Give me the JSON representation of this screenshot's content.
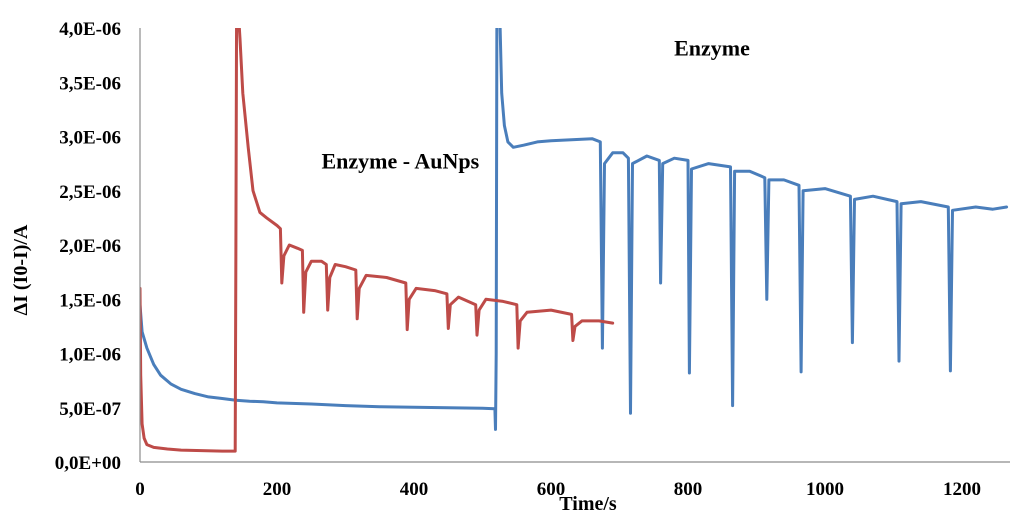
{
  "chart_data": {
    "type": "line",
    "xlabel": "Time/s",
    "ylabel": "ΔI (I0-I)/A",
    "xlim": [
      0,
      1270
    ],
    "ylim": [
      0,
      4e-06
    ],
    "x_ticks": [
      0,
      200,
      400,
      600,
      800,
      1000,
      1200
    ],
    "x_tick_labels": [
      "0",
      "200",
      "400",
      "600",
      "800",
      "1000",
      "1200"
    ],
    "y_ticks": [
      0,
      5e-07,
      1e-06,
      1.5e-06,
      2e-06,
      2.5e-06,
      3e-06,
      3.5e-06,
      4e-06
    ],
    "y_tick_labels": [
      "0,0E+00",
      "5,0E-07",
      "1,0E-06",
      "1,5E-06",
      "2,0E-06",
      "2,5E-06",
      "3,0E-06",
      "3,5E-06",
      "4,0E-06"
    ],
    "grid": false,
    "legend": "none",
    "annotations": [
      {
        "text": "Enzyme",
        "x": 835,
        "y": 3.82e-06
      },
      {
        "text": "Enzyme - AuNps",
        "x": 380,
        "y": 2.78e-06
      }
    ],
    "series": [
      {
        "color": "#4a7ebb",
        "points": [
          [
            0,
            1.45e-06
          ],
          [
            3,
            1.2e-06
          ],
          [
            10,
            1.05e-06
          ],
          [
            20,
            9e-07
          ],
          [
            30,
            8e-07
          ],
          [
            45,
            7.2e-07
          ],
          [
            60,
            6.7e-07
          ],
          [
            80,
            6.3e-07
          ],
          [
            100,
            6e-07
          ],
          [
            120,
            5.85e-07
          ],
          [
            140,
            5.7e-07
          ],
          [
            160,
            5.6e-07
          ],
          [
            180,
            5.55e-07
          ],
          [
            200,
            5.45e-07
          ],
          [
            250,
            5.35e-07
          ],
          [
            300,
            5.2e-07
          ],
          [
            350,
            5.1e-07
          ],
          [
            400,
            5.05e-07
          ],
          [
            450,
            5e-07
          ],
          [
            500,
            4.95e-07
          ],
          [
            518,
            4.9e-07
          ],
          [
            519,
            3e-07
          ],
          [
            520,
            1e-06
          ],
          [
            521,
            4.2e-06
          ],
          [
            525,
            4.2e-06
          ],
          [
            528,
            3.4e-06
          ],
          [
            532,
            3.1e-06
          ],
          [
            537,
            2.95e-06
          ],
          [
            545,
            2.9e-06
          ],
          [
            560,
            2.92e-06
          ],
          [
            580,
            2.95e-06
          ],
          [
            600,
            2.96e-06
          ],
          [
            630,
            2.97e-06
          ],
          [
            660,
            2.98e-06
          ],
          [
            672,
            2.95e-06
          ],
          [
            675,
            1.05e-06
          ],
          [
            678,
            2.75e-06
          ],
          [
            690,
            2.85e-06
          ],
          [
            705,
            2.85e-06
          ],
          [
            713,
            2.8e-06
          ],
          [
            716,
            4.5e-07
          ],
          [
            719,
            2.75e-06
          ],
          [
            740,
            2.82e-06
          ],
          [
            758,
            2.78e-06
          ],
          [
            760,
            1.65e-06
          ],
          [
            763,
            2.75e-06
          ],
          [
            780,
            2.8e-06
          ],
          [
            800,
            2.78e-06
          ],
          [
            802,
            8.2e-07
          ],
          [
            805,
            2.7e-06
          ],
          [
            830,
            2.75e-06
          ],
          [
            862,
            2.72e-06
          ],
          [
            865,
            5.2e-07
          ],
          [
            868,
            2.68e-06
          ],
          [
            890,
            2.68e-06
          ],
          [
            912,
            2.62e-06
          ],
          [
            915,
            1.5e-06
          ],
          [
            918,
            2.6e-06
          ],
          [
            940,
            2.6e-06
          ],
          [
            962,
            2.55e-06
          ],
          [
            965,
            8.3e-07
          ],
          [
            968,
            2.5e-06
          ],
          [
            1000,
            2.52e-06
          ],
          [
            1037,
            2.45e-06
          ],
          [
            1040,
            1.1e-06
          ],
          [
            1043,
            2.42e-06
          ],
          [
            1070,
            2.45e-06
          ],
          [
            1105,
            2.4e-06
          ],
          [
            1108,
            9.3e-07
          ],
          [
            1111,
            2.38e-06
          ],
          [
            1140,
            2.4e-06
          ],
          [
            1180,
            2.35e-06
          ],
          [
            1183,
            8.4e-07
          ],
          [
            1186,
            2.32e-06
          ],
          [
            1220,
            2.35e-06
          ],
          [
            1245,
            2.33e-06
          ],
          [
            1265,
            2.35e-06
          ]
        ]
      },
      {
        "color": "#be4b48",
        "points": [
          [
            0,
            1.6e-06
          ],
          [
            1,
            8e-07
          ],
          [
            3,
            3.5e-07
          ],
          [
            6,
            2.2e-07
          ],
          [
            10,
            1.6e-07
          ],
          [
            20,
            1.35e-07
          ],
          [
            40,
            1.2e-07
          ],
          [
            60,
            1.1e-07
          ],
          [
            90,
            1.05e-07
          ],
          [
            120,
            1e-07
          ],
          [
            139,
            1e-07
          ],
          [
            140,
            2e-06
          ],
          [
            141,
            4.2e-06
          ],
          [
            143,
            4.2e-06
          ],
          [
            146,
            3.9e-06
          ],
          [
            150,
            3.4e-06
          ],
          [
            158,
            2.9e-06
          ],
          [
            165,
            2.5e-06
          ],
          [
            175,
            2.3e-06
          ],
          [
            185,
            2.25e-06
          ],
          [
            200,
            2.18e-06
          ],
          [
            205,
            2.15e-06
          ],
          [
            207,
            1.65e-06
          ],
          [
            210,
            1.9e-06
          ],
          [
            218,
            2e-06
          ],
          [
            230,
            1.97e-06
          ],
          [
            237,
            1.95e-06
          ],
          [
            239,
            1.38e-06
          ],
          [
            242,
            1.75e-06
          ],
          [
            250,
            1.85e-06
          ],
          [
            265,
            1.85e-06
          ],
          [
            272,
            1.82e-06
          ],
          [
            274,
            1.4e-06
          ],
          [
            277,
            1.7e-06
          ],
          [
            285,
            1.82e-06
          ],
          [
            300,
            1.8e-06
          ],
          [
            315,
            1.77e-06
          ],
          [
            317,
            1.32e-06
          ],
          [
            320,
            1.6e-06
          ],
          [
            330,
            1.72e-06
          ],
          [
            360,
            1.7e-06
          ],
          [
            388,
            1.65e-06
          ],
          [
            390,
            1.22e-06
          ],
          [
            393,
            1.5e-06
          ],
          [
            403,
            1.6e-06
          ],
          [
            430,
            1.58e-06
          ],
          [
            448,
            1.55e-06
          ],
          [
            450,
            1.23e-06
          ],
          [
            453,
            1.45e-06
          ],
          [
            465,
            1.52e-06
          ],
          [
            490,
            1.45e-06
          ],
          [
            492,
            1.17e-06
          ],
          [
            495,
            1.4e-06
          ],
          [
            505,
            1.5e-06
          ],
          [
            530,
            1.48e-06
          ],
          [
            550,
            1.45e-06
          ],
          [
            552,
            1.05e-06
          ],
          [
            555,
            1.3e-06
          ],
          [
            565,
            1.38e-06
          ],
          [
            600,
            1.4e-06
          ],
          [
            630,
            1.36e-06
          ],
          [
            632,
            1.12e-06
          ],
          [
            635,
            1.25e-06
          ],
          [
            645,
            1.3e-06
          ],
          [
            670,
            1.3e-06
          ],
          [
            690,
            1.28e-06
          ]
        ]
      }
    ]
  }
}
